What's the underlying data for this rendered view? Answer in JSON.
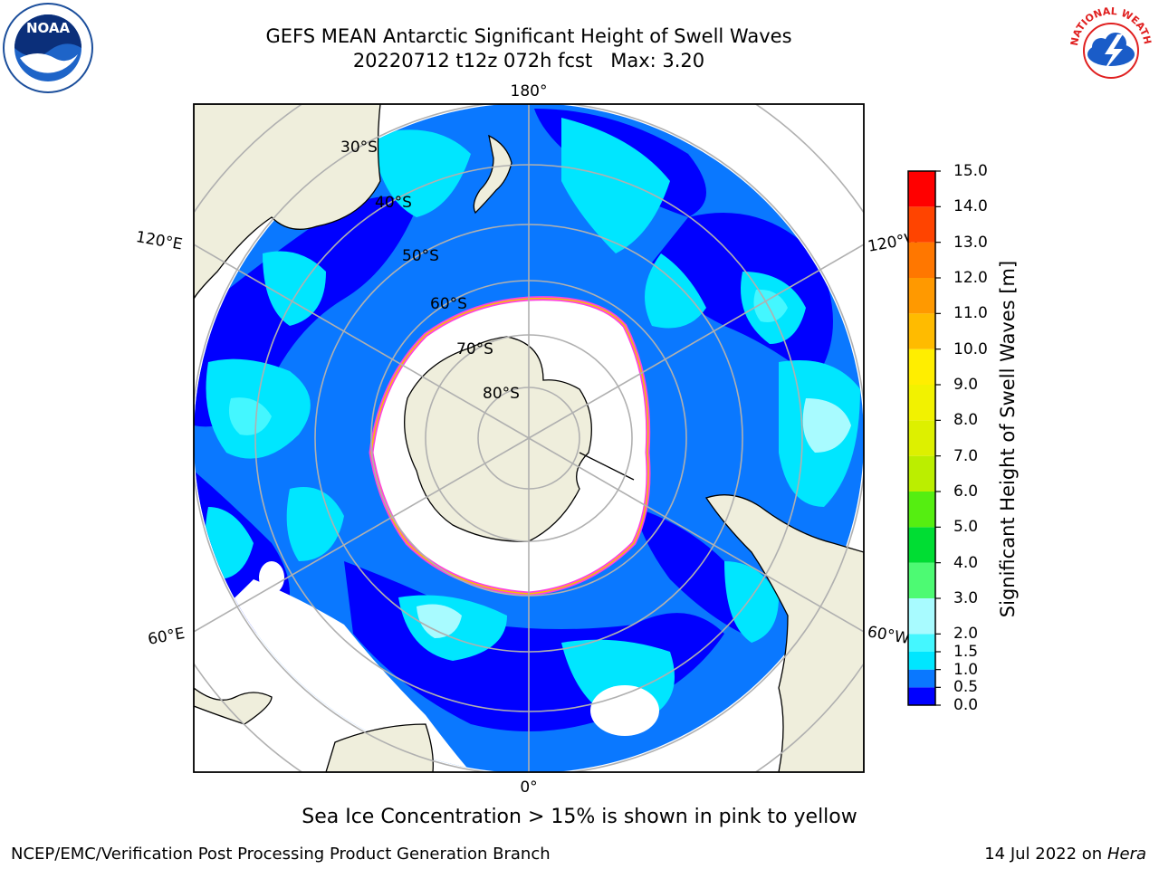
{
  "header": {
    "title": "GEFS MEAN Antarctic Significant Height of Swell Waves",
    "subtitle": "20220712 t12z 072h fcst   Max: 3.20"
  },
  "logos": {
    "noara_text": "NOAA",
    "nws_text": "NATIONAL WEATHER SERVICE"
  },
  "map": {
    "projection": "south-polar-stereographic",
    "longitude_labels": {
      "top": "180°",
      "bottom": "0°",
      "left_upper": "120°E",
      "left_lower": "60°E",
      "right_upper": "120°W",
      "right_lower": "60°W"
    },
    "latitude_labels": [
      "30°S",
      "40°S",
      "50°S",
      "60°S",
      "70°S",
      "80°S"
    ],
    "colors": {
      "land": "#efeedc",
      "ice_edge_pink": "#ff44dd",
      "ice_edge_yellow": "#f5c400",
      "grid": "#b0b0b0"
    }
  },
  "colorbar": {
    "label": "Significant Height of Swell Waves [m]",
    "ticks": [
      "0.0",
      "0.5",
      "1.0",
      "1.5",
      "2.0",
      "2.5",
      "3.0",
      "3.5",
      "4.0",
      "4.5",
      "5.0",
      "5.5",
      "6.0",
      "6.5",
      "7.0",
      "7.5",
      "8.0",
      "8.5",
      "9.0",
      "9.5",
      "10.0",
      "10.5",
      "11.0",
      "11.5",
      "12.0",
      "12.5",
      "13.0",
      "13.5",
      "14.0",
      "14.5",
      "15.0"
    ],
    "tick_labels_shown": [
      "0.0",
      "0.5",
      "1.0",
      "1.5",
      "2.0",
      "3.0",
      "4.0",
      "5.0",
      "6.0",
      "7.0",
      "8.0",
      "9.0",
      "10.0",
      "11.0",
      "12.0",
      "13.0",
      "14.0",
      "15.0"
    ],
    "bins": [
      {
        "from": 0.0,
        "to": 0.5,
        "color": "#0000ff"
      },
      {
        "from": 0.5,
        "to": 1.0,
        "color": "#0a78ff"
      },
      {
        "from": 1.0,
        "to": 1.5,
        "color": "#00e6ff"
      },
      {
        "from": 1.5,
        "to": 2.0,
        "color": "#44f7ff"
      },
      {
        "from": 2.0,
        "to": 3.0,
        "color": "#a8fbff"
      },
      {
        "from": 3.0,
        "to": 4.0,
        "color": "#4dfa73"
      },
      {
        "from": 4.0,
        "to": 5.0,
        "color": "#00dd33"
      },
      {
        "from": 5.0,
        "to": 6.0,
        "color": "#55ee11"
      },
      {
        "from": 6.0,
        "to": 7.0,
        "color": "#bbee00"
      },
      {
        "from": 7.0,
        "to": 8.0,
        "color": "#ddf000"
      },
      {
        "from": 8.0,
        "to": 9.0,
        "color": "#f2f200"
      },
      {
        "from": 9.0,
        "to": 10.0,
        "color": "#ffee00"
      },
      {
        "from": 10.0,
        "to": 11.0,
        "color": "#ffbb00"
      },
      {
        "from": 11.0,
        "to": 12.0,
        "color": "#ff9900"
      },
      {
        "from": 12.0,
        "to": 13.0,
        "color": "#ff7700"
      },
      {
        "from": 13.0,
        "to": 14.0,
        "color": "#ff4400"
      },
      {
        "from": 14.0,
        "to": 15.0,
        "color": "#ff0000"
      }
    ]
  },
  "note": "Sea Ice Concentration > 15% is shown in pink to yellow",
  "footer": {
    "left": "NCEP/EMC/Verification Post Processing Product Generation Branch",
    "right_date": "14 Jul 2022 on ",
    "right_machine": "Hera"
  }
}
